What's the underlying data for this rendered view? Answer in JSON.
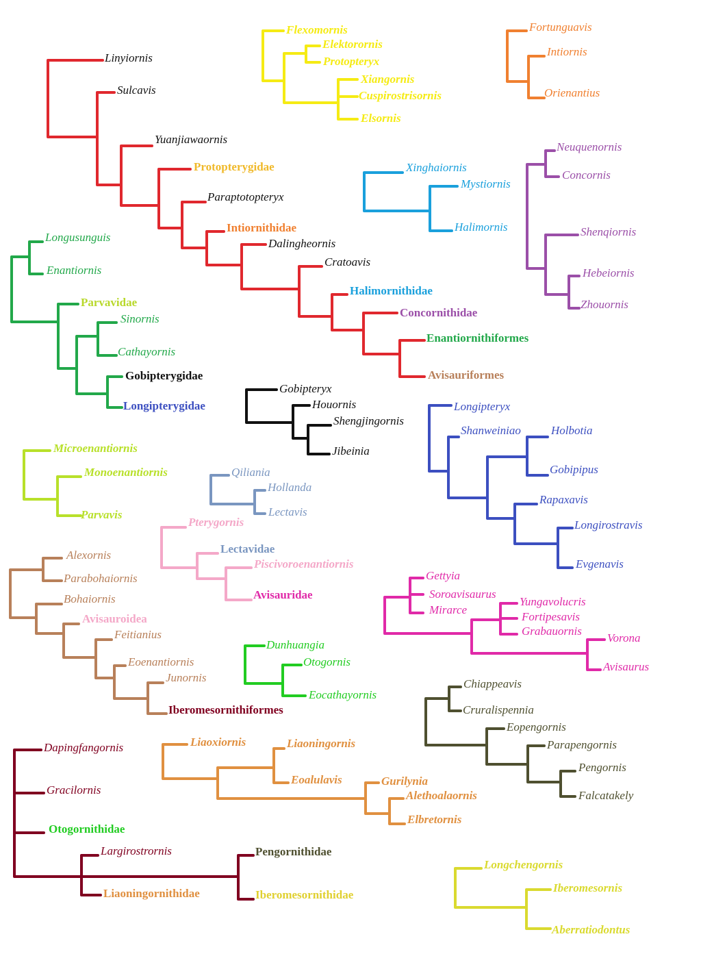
{
  "trees": [
    {
      "labels": [
        "Linyiornis",
        "Sulcavis",
        "Yuanjiawaornis",
        "Protopterygidae",
        "Paraptotopteryx",
        "Intiornithidae",
        "Dalingheornis",
        "Cratoavis",
        "Halimornithidae",
        "Concornithidae",
        "Enantiornithiformes",
        "Avisauriformes"
      ]
    },
    {
      "labels": [
        "Flexomornis",
        "Elektorornis",
        "Protopteryx",
        "Xiangornis",
        "Cuspirostrisornis",
        "Elsornis"
      ]
    },
    {
      "labels": [
        "Fortunguavis",
        "Intiornis",
        "Orienantius"
      ]
    },
    {
      "labels": [
        "Xinghaiornis",
        "Mystiornis",
        "Halimornis"
      ]
    },
    {
      "labels": [
        "Neuquenornis",
        "Concornis",
        "Shenqiornis",
        "Hebeiornis",
        "Zhouornis"
      ]
    },
    {
      "labels": [
        "Longusunguis",
        "Enantiornis",
        "Parvavidae",
        "Sinornis",
        "Cathayornis",
        "Gobipterygidae",
        "Longipterygidae"
      ]
    },
    {
      "labels": [
        "Gobipteryx",
        "Houornis",
        "Shengjingornis",
        "Jibeinia"
      ]
    },
    {
      "labels": [
        "Longipteryx",
        "Shanweiniao",
        "Holbotia",
        "Gobipipus",
        "Rapaxavis",
        "Longirostravis",
        "Evgenavis"
      ]
    },
    {
      "labels": [
        "Microenantiornis",
        "Monoenantiornis",
        "Parvavis"
      ]
    },
    {
      "labels": [
        "Qiliania",
        "Hollanda",
        "Lectavis"
      ]
    },
    {
      "labels": [
        "Pterygornis",
        "Lectavidae",
        "Piscivoroenantiornis",
        "Avisauridae"
      ]
    },
    {
      "labels": [
        "Alexornis",
        "Parabohaiornis",
        "Bohaiornis",
        "Avisauroidea",
        "Feitianius",
        "Eoenantiornis",
        "Junornis",
        "Iberomesornithiformes"
      ]
    },
    {
      "labels": [
        "Dunhuangia",
        "Otogornis",
        "Eocathayornis"
      ]
    },
    {
      "labels": [
        "Gettyia",
        "Soroavisaurus",
        "Mirarce",
        "Yungavolucris",
        "Fortipesavis",
        "Grabauornis",
        "Vorona",
        "Avisaurus"
      ]
    },
    {
      "labels": [
        "Chiappeavis",
        "Cruralispennia",
        "Eopengornis",
        "Parapengornis",
        "Pengornis",
        "Falcatakely"
      ]
    },
    {
      "labels": [
        "Dapingfangornis",
        "Gracilornis",
        "Otogornithidae",
        "Largirostrornis",
        "Liaoningornithidae",
        "Pengornithidae",
        "Iberomesornithidae"
      ]
    },
    {
      "labels": [
        "Liaoxiornis",
        "Liaoningornis",
        "Eoalulavis",
        "Gurilynia",
        "Alethoalaornis",
        "Elbretornis"
      ]
    },
    {
      "labels": [
        "Longchengornis",
        "Iberomesornis",
        "Aberratiodontus"
      ]
    }
  ]
}
